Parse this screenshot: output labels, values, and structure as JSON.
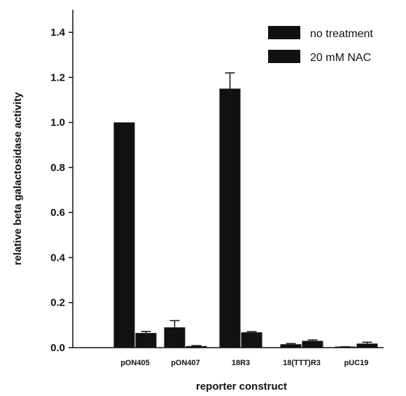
{
  "chart_data": {
    "type": "bar",
    "title": "",
    "xlabel": "reporter construct",
    "ylabel": "relative beta galactosidase activity",
    "ylim": [
      0,
      1.5
    ],
    "yticks": [
      "0.0",
      "0.2",
      "0.4",
      "0.6",
      "0.8",
      "1.0",
      "1.2",
      "1.4"
    ],
    "categories": [
      "pON405",
      "pON407",
      "18R3",
      "18(TTT)R3",
      "pUC19"
    ],
    "series": [
      {
        "name": "no treatment",
        "values": [
          1.0,
          0.09,
          1.15,
          0.015,
          0.003
        ],
        "errors": [
          0,
          0.03,
          0.07,
          0.003,
          0.001
        ]
      },
      {
        "name": "20 mM NAC",
        "values": [
          0.065,
          0.007,
          0.068,
          0.03,
          0.018
        ],
        "errors": [
          0.007,
          0.002,
          0.003,
          0.004,
          0.006
        ]
      }
    ],
    "legend_position": "top-right",
    "grid": false,
    "bar_color": "#111111"
  }
}
